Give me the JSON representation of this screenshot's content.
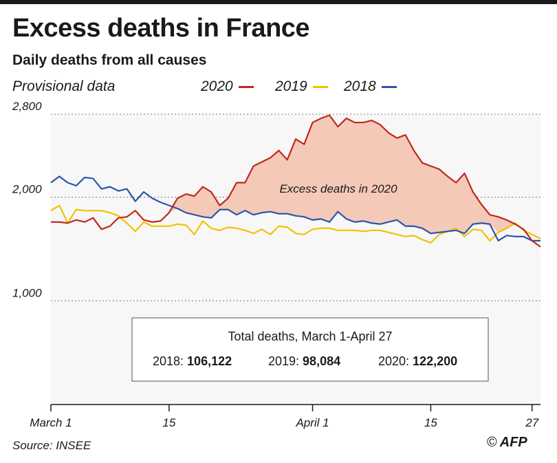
{
  "header": {
    "title": "Excess deaths in France",
    "subtitle": "Daily deaths from all causes",
    "note": "Provisional data"
  },
  "legend": [
    {
      "name": "2020",
      "color": "#c0281e"
    },
    {
      "name": "2019",
      "color": "#f2c200"
    },
    {
      "name": "2018",
      "color": "#2a56a8"
    }
  ],
  "annotation": "Excess deaths in 2020",
  "totals": {
    "title": "Total deaths, March 1-April 27",
    "items": [
      {
        "label": "2018:",
        "value": "106,122"
      },
      {
        "label": "2019:",
        "value": "98,084"
      },
      {
        "label": "2020:",
        "value": "122,200"
      }
    ]
  },
  "footer": {
    "source": "Source: INSEE",
    "credit": "AFP",
    "copyright": "©"
  },
  "chart_data": {
    "type": "line",
    "title": "Excess deaths in France",
    "subtitle": "Daily deaths from all causes",
    "xlabel": "",
    "ylabel": "",
    "ylim": [
      0,
      2800
    ],
    "yticks": [
      {
        "value": 1000,
        "label": "1,000"
      },
      {
        "value": 2000,
        "label": "2,000"
      },
      {
        "value": 2800,
        "label": "2,800"
      }
    ],
    "xticks": [
      {
        "day": 1,
        "label": "March 1"
      },
      {
        "day": 15,
        "label": "15"
      },
      {
        "day": 32,
        "label": "April 1"
      },
      {
        "day": 46,
        "label": "15"
      },
      {
        "day": 58,
        "label": "27"
      }
    ],
    "x_start": "March 1",
    "x_end": "April 27",
    "grid": "horizontal dotted",
    "fill": "area between 2020 and the max of 2018/2019 is shaded",
    "series": [
      {
        "name": "2020",
        "color": "#c0281e",
        "values": [
          1760,
          1760,
          1750,
          1780,
          1760,
          1800,
          1690,
          1720,
          1800,
          1810,
          1870,
          1780,
          1760,
          1770,
          1850,
          1990,
          2030,
          2010,
          2100,
          2050,
          1920,
          1990,
          2140,
          2140,
          2300,
          2340,
          2380,
          2450,
          2360,
          2560,
          2510,
          2720,
          2760,
          2790,
          2680,
          2760,
          2720,
          2720,
          2740,
          2700,
          2620,
          2570,
          2600,
          2450,
          2330,
          2300,
          2270,
          2200,
          2140,
          2230,
          2050,
          1930,
          1830,
          1810,
          1780,
          1740,
          1690,
          1580,
          1520
        ]
      },
      {
        "name": "2019",
        "color": "#f2c200",
        "values": [
          1870,
          1920,
          1750,
          1880,
          1870,
          1870,
          1870,
          1850,
          1820,
          1750,
          1670,
          1760,
          1720,
          1720,
          1720,
          1740,
          1730,
          1640,
          1770,
          1700,
          1680,
          1710,
          1700,
          1680,
          1650,
          1690,
          1640,
          1720,
          1710,
          1650,
          1640,
          1690,
          1700,
          1700,
          1680,
          1680,
          1680,
          1670,
          1680,
          1680,
          1660,
          1640,
          1620,
          1630,
          1590,
          1560,
          1640,
          1670,
          1700,
          1620,
          1690,
          1680,
          1580,
          1660,
          1700,
          1750,
          1680,
          1640,
          1600
        ]
      },
      {
        "name": "2018",
        "color": "#2a56a8",
        "values": [
          2140,
          2200,
          2140,
          2110,
          2190,
          2180,
          2080,
          2100,
          2060,
          2080,
          1960,
          2050,
          1990,
          1950,
          1920,
          1890,
          1850,
          1830,
          1810,
          1800,
          1880,
          1880,
          1830,
          1870,
          1830,
          1850,
          1860,
          1840,
          1840,
          1820,
          1810,
          1780,
          1790,
          1760,
          1860,
          1790,
          1760,
          1770,
          1750,
          1740,
          1760,
          1780,
          1720,
          1720,
          1700,
          1650,
          1660,
          1670,
          1680,
          1650,
          1740,
          1750,
          1740,
          1580,
          1630,
          1620,
          1620,
          1580,
          1580
        ]
      }
    ]
  }
}
